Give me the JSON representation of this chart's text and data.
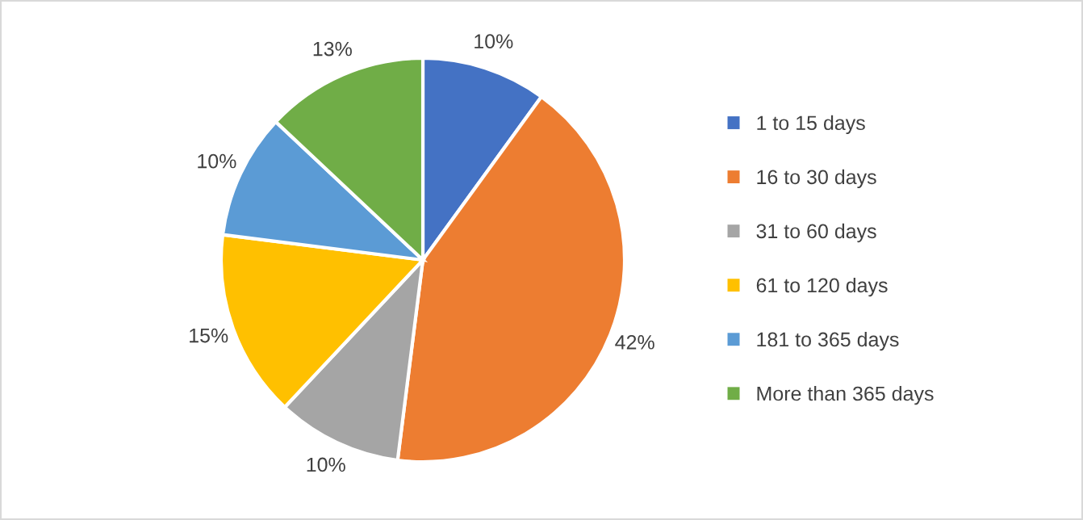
{
  "chart_data": {
    "type": "pie",
    "categories": [
      "1 to 15 days",
      "16 to 30 days",
      "31 to 60 days",
      "61 to 120 days",
      "181 to 365 days",
      "More than 365 days"
    ],
    "values": [
      10,
      42,
      10,
      15,
      10,
      13
    ],
    "value_labels": [
      "10%",
      "42%",
      "10%",
      "15%",
      "10%",
      "13%"
    ],
    "colors": [
      "#4472c4",
      "#ed7d31",
      "#a5a5a5",
      "#ffc000",
      "#5b9bd5",
      "#70ad47"
    ],
    "legend": "right"
  }
}
